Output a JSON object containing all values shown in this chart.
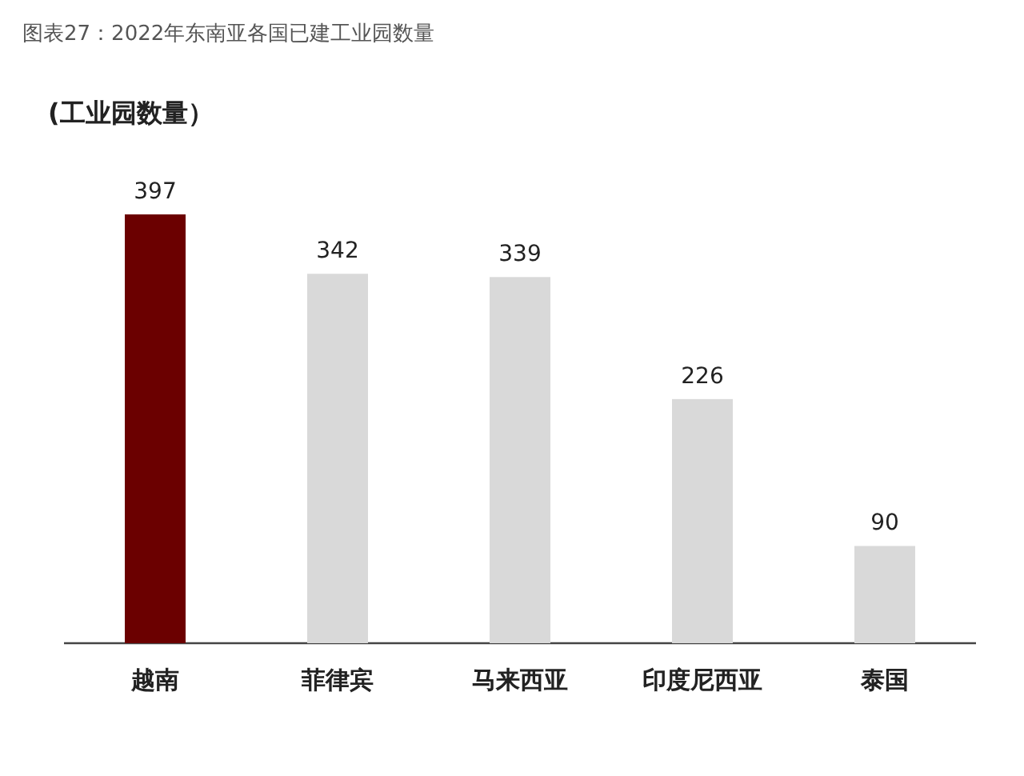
{
  "chart_data": {
    "type": "bar",
    "title": "图表27：2022年东南亚各国已建工业园数量",
    "ylabel": "(工业园数量）",
    "categories": [
      "越南",
      "菲律宾",
      "马来西亚",
      "印度尼西亚",
      "泰国"
    ],
    "values": [
      397,
      342,
      339,
      226,
      90
    ],
    "colors": [
      "#6b0000",
      "#d9d9d9",
      "#d9d9d9",
      "#d9d9d9",
      "#d9d9d9"
    ],
    "data_labels": true
  }
}
